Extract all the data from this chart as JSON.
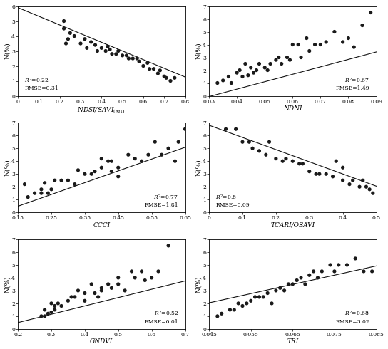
{
  "plots": [
    {
      "xlabel": "NDSI/SAVI$_{(M1)}$",
      "ylabel": "N(%)",
      "r2": "0.22",
      "rmse": "0.31",
      "annotation_loc": "lower left",
      "x_range": [
        0.0,
        0.8
      ],
      "y_range": [
        0,
        6
      ],
      "x_ticks": [
        0.0,
        0.1,
        0.2,
        0.3,
        0.4,
        0.5,
        0.6,
        0.7,
        0.8
      ],
      "x_ticklabels": [
        "0",
        "0.1",
        "0.2",
        "0.3",
        "0.4",
        "0.5",
        "0.6",
        "0.7",
        "0.8"
      ],
      "y_ticks": [
        0,
        1,
        2,
        3,
        4,
        5,
        6
      ],
      "y_ticklabels": [
        "0",
        "1",
        "2",
        "3",
        "4",
        "5",
        "6"
      ],
      "slope": -5.8,
      "intercept": 5.9,
      "scatter_x": [
        0.22,
        0.23,
        0.22,
        0.24,
        0.25,
        0.27,
        0.3,
        0.32,
        0.33,
        0.35,
        0.37,
        0.38,
        0.4,
        0.42,
        0.43,
        0.44,
        0.45,
        0.47,
        0.48,
        0.5,
        0.52,
        0.53,
        0.55,
        0.57,
        0.58,
        0.6,
        0.62,
        0.63,
        0.65,
        0.67,
        0.68,
        0.7,
        0.71,
        0.73,
        0.75
      ],
      "scatter_y": [
        4.5,
        3.5,
        5.0,
        3.8,
        4.2,
        4.0,
        3.5,
        3.8,
        3.2,
        3.6,
        3.4,
        3.0,
        3.2,
        3.0,
        3.3,
        3.1,
        2.8,
        2.8,
        3.0,
        2.7,
        2.7,
        2.5,
        2.5,
        2.5,
        2.3,
        2.0,
        2.2,
        1.8,
        1.8,
        1.5,
        1.7,
        1.3,
        1.2,
        1.0,
        1.2
      ]
    },
    {
      "xlabel": "NDNI",
      "ylabel": "N(%)",
      "r2": "0.67",
      "rmse": "1.49",
      "annotation_loc": "lower right",
      "x_range": [
        0.03,
        0.09
      ],
      "y_range": [
        0,
        7
      ],
      "x_ticks": [
        0.03,
        0.04,
        0.05,
        0.06,
        0.07,
        0.08,
        0.09
      ],
      "x_ticklabels": [
        "0.03",
        "0.04",
        "0.05",
        "0.06",
        "0.07",
        "0.08",
        "0.09"
      ],
      "y_ticks": [
        0,
        1,
        2,
        3,
        4,
        5,
        6,
        7
      ],
      "y_ticklabels": [
        "0",
        "1",
        "2",
        "3",
        "4",
        "5",
        "6",
        "7"
      ],
      "slope": 58.0,
      "intercept": -1.8,
      "scatter_x": [
        0.033,
        0.035,
        0.037,
        0.038,
        0.04,
        0.041,
        0.042,
        0.043,
        0.044,
        0.045,
        0.046,
        0.047,
        0.048,
        0.05,
        0.051,
        0.052,
        0.054,
        0.055,
        0.056,
        0.058,
        0.059,
        0.06,
        0.062,
        0.063,
        0.065,
        0.066,
        0.068,
        0.07,
        0.072,
        0.075,
        0.078,
        0.08,
        0.082,
        0.085,
        0.088
      ],
      "scatter_y": [
        1.0,
        1.2,
        1.5,
        1.0,
        1.8,
        2.0,
        1.5,
        2.5,
        1.6,
        2.2,
        1.8,
        2.0,
        2.5,
        2.2,
        2.0,
        2.5,
        2.8,
        3.0,
        2.5,
        3.0,
        2.8,
        4.0,
        4.0,
        3.0,
        4.5,
        3.5,
        4.0,
        4.0,
        4.2,
        5.0,
        4.2,
        4.5,
        3.8,
        5.5,
        6.5
      ]
    },
    {
      "xlabel": "CCCI",
      "ylabel": "N(%)",
      "r2": "0.77",
      "rmse": "1.81",
      "annotation_loc": "lower right",
      "x_range": [
        0.15,
        0.65
      ],
      "y_range": [
        0,
        7
      ],
      "x_ticks": [
        0.15,
        0.25,
        0.35,
        0.45,
        0.55,
        0.65
      ],
      "x_ticklabels": [
        "0.15",
        "0.25",
        "0.35",
        "0.45",
        "0.55",
        "0.65"
      ],
      "y_ticks": [
        0,
        1,
        2,
        3,
        4,
        5,
        6,
        7
      ],
      "y_ticklabels": [
        "0",
        "1",
        "2",
        "3",
        "4",
        "5",
        "6",
        "7"
      ],
      "slope": 9.2,
      "intercept": -0.9,
      "scatter_x": [
        0.17,
        0.18,
        0.2,
        0.22,
        0.22,
        0.23,
        0.24,
        0.25,
        0.26,
        0.28,
        0.3,
        0.32,
        0.33,
        0.35,
        0.37,
        0.38,
        0.4,
        0.4,
        0.42,
        0.43,
        0.43,
        0.45,
        0.45,
        0.48,
        0.5,
        0.52,
        0.54,
        0.56,
        0.58,
        0.6,
        0.62,
        0.63,
        0.65
      ],
      "scatter_y": [
        2.2,
        1.2,
        1.5,
        1.8,
        1.5,
        2.3,
        1.5,
        1.8,
        2.5,
        2.5,
        2.5,
        2.2,
        3.3,
        3.0,
        3.0,
        3.2,
        3.5,
        4.2,
        4.0,
        3.2,
        4.0,
        3.5,
        2.8,
        4.5,
        4.2,
        4.0,
        4.5,
        5.5,
        4.5,
        5.0,
        4.0,
        5.5,
        6.5
      ]
    },
    {
      "xlabel": "TCARI/OSAVI",
      "ylabel": "N(%)",
      "r2": "0.8",
      "rmse": "0.09",
      "annotation_loc": "lower left",
      "x_range": [
        0.0,
        0.5
      ],
      "y_range": [
        0,
        7
      ],
      "x_ticks": [
        0.0,
        0.1,
        0.2,
        0.3,
        0.4,
        0.5
      ],
      "x_ticklabels": [
        "0",
        "0.1",
        "0.2",
        "0.3",
        "0.4",
        "0.5"
      ],
      "y_ticks": [
        0,
        1,
        2,
        3,
        4,
        5,
        6,
        7
      ],
      "y_ticklabels": [
        "0",
        "1",
        "2",
        "3",
        "4",
        "5",
        "6",
        "7"
      ],
      "slope": -9.5,
      "intercept": 6.8,
      "scatter_x": [
        0.05,
        0.08,
        0.1,
        0.12,
        0.13,
        0.15,
        0.17,
        0.18,
        0.2,
        0.22,
        0.23,
        0.25,
        0.27,
        0.28,
        0.3,
        0.32,
        0.33,
        0.35,
        0.37,
        0.38,
        0.4,
        0.4,
        0.42,
        0.43,
        0.45,
        0.46,
        0.47,
        0.48,
        0.49
      ],
      "scatter_y": [
        6.5,
        6.5,
        5.5,
        5.5,
        5.0,
        4.8,
        4.5,
        5.5,
        4.2,
        4.0,
        4.2,
        4.0,
        3.8,
        3.8,
        3.2,
        3.0,
        3.0,
        3.0,
        2.8,
        4.0,
        2.5,
        3.5,
        2.2,
        2.5,
        2.0,
        2.5,
        2.0,
        1.8,
        1.5
      ]
    },
    {
      "xlabel": "GNDVI",
      "ylabel": "N(%)",
      "r2": "0.52",
      "rmse": "0.01",
      "annotation_loc": "lower right",
      "x_range": [
        0.2,
        0.7
      ],
      "y_range": [
        0,
        7
      ],
      "x_ticks": [
        0.2,
        0.3,
        0.4,
        0.5,
        0.6,
        0.7
      ],
      "x_ticklabels": [
        "0.2",
        "0.3",
        "0.4",
        "0.5",
        "0.6",
        "0.7"
      ],
      "y_ticks": [
        0,
        1,
        2,
        3,
        4,
        5,
        6,
        7
      ],
      "y_ticklabels": [
        "0",
        "1",
        "2",
        "3",
        "4",
        "5",
        "6",
        "7"
      ],
      "slope": 6.5,
      "intercept": -0.8,
      "scatter_x": [
        0.27,
        0.28,
        0.28,
        0.29,
        0.3,
        0.3,
        0.31,
        0.31,
        0.32,
        0.33,
        0.35,
        0.36,
        0.37,
        0.38,
        0.4,
        0.4,
        0.42,
        0.43,
        0.44,
        0.45,
        0.45,
        0.47,
        0.48,
        0.5,
        0.5,
        0.52,
        0.54,
        0.55,
        0.57,
        0.58,
        0.6,
        0.62,
        0.65
      ],
      "scatter_y": [
        1.0,
        1.0,
        1.5,
        1.2,
        1.3,
        2.0,
        1.8,
        1.5,
        2.0,
        1.8,
        2.2,
        2.5,
        2.5,
        3.0,
        2.8,
        2.2,
        3.5,
        2.8,
        2.5,
        3.2,
        3.0,
        3.5,
        3.2,
        3.5,
        4.0,
        3.0,
        4.5,
        4.0,
        4.5,
        3.8,
        4.0,
        4.5,
        6.5
      ]
    },
    {
      "xlabel": "TRI",
      "ylabel": "N(%)",
      "r2": "0.68",
      "rmse": "3.02",
      "annotation_loc": "lower right",
      "x_range": [
        0.045,
        0.085
      ],
      "y_range": [
        0,
        7
      ],
      "x_ticks": [
        0.045,
        0.055,
        0.065,
        0.075,
        0.085
      ],
      "x_ticklabels": [
        "0.045",
        "0.055",
        "0.065",
        "0.075",
        "0.085"
      ],
      "y_ticks": [
        0,
        1,
        2,
        3,
        4,
        5,
        6,
        7
      ],
      "y_ticklabels": [
        "0",
        "1",
        "2",
        "3",
        "4",
        "5",
        "6",
        "7"
      ],
      "slope": 72.0,
      "intercept": -1.2,
      "scatter_x": [
        0.047,
        0.048,
        0.05,
        0.051,
        0.052,
        0.053,
        0.054,
        0.055,
        0.056,
        0.057,
        0.058,
        0.059,
        0.06,
        0.061,
        0.062,
        0.063,
        0.064,
        0.065,
        0.066,
        0.067,
        0.068,
        0.069,
        0.07,
        0.071,
        0.072,
        0.074,
        0.075,
        0.076,
        0.078,
        0.08,
        0.082,
        0.084
      ],
      "scatter_y": [
        1.0,
        1.2,
        1.5,
        1.5,
        2.0,
        1.8,
        2.0,
        2.2,
        2.5,
        2.5,
        2.5,
        2.8,
        2.0,
        3.0,
        3.2,
        3.0,
        3.5,
        3.5,
        3.8,
        4.0,
        3.5,
        4.2,
        4.5,
        4.0,
        4.5,
        5.0,
        4.5,
        5.0,
        5.0,
        5.5,
        4.5,
        4.5
      ]
    }
  ],
  "scatter_color": "#1a1a1a",
  "line_color": "#111111",
  "marker_size": 14,
  "font_size": 6.5
}
